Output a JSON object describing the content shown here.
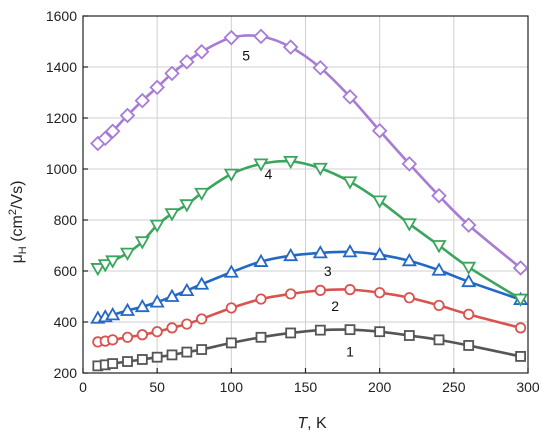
{
  "chart_data": {
    "type": "line",
    "xlabel_italic": "T",
    "xlabel_unit": ", K",
    "ylabel_main": "μ",
    "ylabel_sub": "H",
    "ylabel_unit_pre": " (cm",
    "ylabel_unit_sup": "2",
    "ylabel_unit_post": "/Vs)",
    "xlim": [
      0,
      300
    ],
    "ylim": [
      200,
      1600
    ],
    "xticks": [
      0,
      50,
      100,
      150,
      200,
      250,
      300
    ],
    "yticks": [
      200,
      400,
      600,
      800,
      1000,
      1200,
      1400,
      1600
    ],
    "grid": true,
    "series": [
      {
        "name": "1",
        "color": "#555555",
        "marker": "square",
        "x": [
          10,
          15,
          20,
          30,
          40,
          50,
          60,
          70,
          80,
          100,
          120,
          140,
          160,
          180,
          200,
          220,
          240,
          260,
          295
        ],
        "y": [
          228,
          232,
          237,
          245,
          253,
          262,
          271,
          282,
          292,
          318,
          340,
          357,
          368,
          370,
          362,
          347,
          330,
          308,
          265
        ]
      },
      {
        "name": "2",
        "color": "#d9534f",
        "marker": "circle",
        "x": [
          10,
          15,
          20,
          30,
          40,
          50,
          60,
          70,
          80,
          100,
          120,
          140,
          160,
          180,
          200,
          220,
          240,
          260,
          295
        ],
        "y": [
          322,
          325,
          330,
          340,
          350,
          362,
          377,
          392,
          412,
          455,
          490,
          510,
          524,
          527,
          515,
          495,
          465,
          430,
          377
        ]
      },
      {
        "name": "3",
        "color": "#2368c4",
        "marker": "triangle-up",
        "x": [
          10,
          15,
          20,
          30,
          40,
          50,
          60,
          70,
          80,
          100,
          120,
          140,
          160,
          180,
          200,
          220,
          240,
          260,
          295
        ],
        "y": [
          415,
          420,
          428,
          445,
          460,
          478,
          500,
          523,
          548,
          595,
          637,
          660,
          671,
          675,
          664,
          640,
          603,
          558,
          488
        ]
      },
      {
        "name": "4",
        "color": "#3aa55c",
        "marker": "triangle-down",
        "x": [
          10,
          15,
          20,
          30,
          40,
          50,
          60,
          70,
          80,
          100,
          120,
          140,
          160,
          180,
          200,
          220,
          240,
          260,
          295
        ],
        "y": [
          610,
          625,
          640,
          670,
          715,
          780,
          825,
          860,
          905,
          980,
          1020,
          1030,
          1003,
          950,
          875,
          785,
          700,
          615,
          490
        ]
      },
      {
        "name": "5",
        "color": "#a77bd6",
        "marker": "diamond",
        "x": [
          10,
          15,
          20,
          30,
          40,
          50,
          60,
          70,
          80,
          100,
          120,
          140,
          160,
          180,
          200,
          220,
          240,
          260,
          295
        ],
        "y": [
          1100,
          1120,
          1148,
          1210,
          1268,
          1320,
          1375,
          1420,
          1460,
          1515,
          1520,
          1478,
          1397,
          1283,
          1150,
          1020,
          895,
          780,
          612
        ]
      }
    ],
    "series_labels": [
      {
        "text": "1",
        "x": 180,
        "y": 285
      },
      {
        "text": "2",
        "x": 170,
        "y": 462
      },
      {
        "text": "3",
        "x": 165,
        "y": 600
      },
      {
        "text": "4",
        "x": 125,
        "y": 980
      },
      {
        "text": "5",
        "x": 110,
        "y": 1445
      }
    ]
  }
}
